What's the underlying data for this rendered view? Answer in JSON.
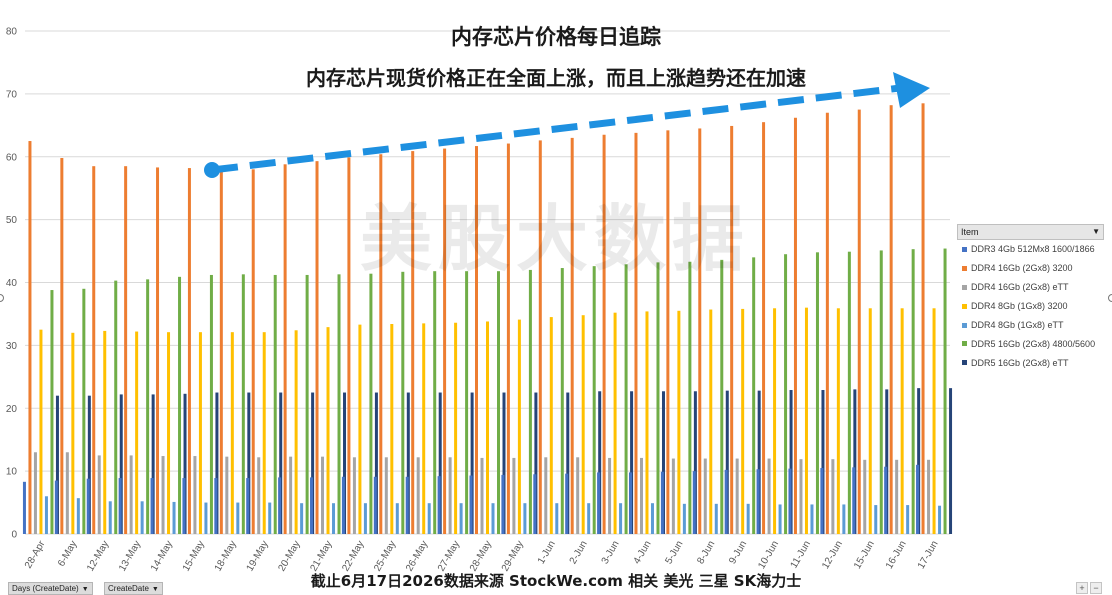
{
  "headline": "内存芯片价格每日追踪",
  "subheadline": "内存芯片现货价格正在全面上涨，而且上涨趋势还在加速",
  "watermark": "美股大数据",
  "footer": "截止6月17日2026数据来源 StockWe.com 相关 美光 三星 SK海力士",
  "legend_title": "Item",
  "filters": {
    "days": "Days (CreateDate)",
    "date": "CreateDate"
  },
  "zoom": {
    "plus": "+",
    "minus": "−"
  },
  "chart_data": {
    "type": "bar",
    "ylim": [
      0,
      80
    ],
    "yticks": [
      0,
      10,
      20,
      30,
      40,
      50,
      60,
      70,
      80
    ],
    "grid": true,
    "legend_position": "right",
    "categories": [
      "28-Apr",
      "6-May",
      "12-May",
      "13-May",
      "14-May",
      "15-May",
      "18-May",
      "19-May",
      "20-May",
      "21-May",
      "22-May",
      "25-May",
      "26-May",
      "27-May",
      "28-May",
      "29-May",
      "1-Jun",
      "2-Jun",
      "3-Jun",
      "4-Jun",
      "5-Jun",
      "8-Jun",
      "9-Jun",
      "10-Jun",
      "11-Jun",
      "12-Jun",
      "15-Jun",
      "16-Jun",
      "17-Jun"
    ],
    "series": [
      {
        "name": "DDR3 4Gb 512Mx8 1600/1866",
        "color": "#4472c4",
        "values": [
          8.3,
          8.5,
          8.8,
          8.9,
          8.9,
          8.9,
          8.9,
          8.9,
          9.0,
          9.0,
          9.1,
          9.1,
          9.1,
          9.2,
          9.3,
          9.4,
          9.5,
          9.6,
          9.8,
          9.8,
          9.9,
          10.0,
          10.2,
          10.3,
          10.4,
          10.5,
          10.6,
          10.7,
          11.0
        ]
      },
      {
        "name": "DDR4 16Gb (2Gx8) 3200",
        "color": "#ed7d31",
        "values": [
          62.5,
          59.8,
          58.5,
          58.5,
          58.3,
          58.2,
          57.9,
          58.0,
          58.8,
          59.3,
          59.9,
          60.4,
          60.9,
          61.3,
          61.7,
          62.1,
          62.6,
          63.0,
          63.5,
          63.8,
          64.2,
          64.5,
          64.9,
          65.5,
          66.2,
          67.0,
          67.5,
          68.2,
          68.5
        ]
      },
      {
        "name": "DDR4 16Gb (2Gx8) eTT",
        "color": "#a5a5a5",
        "values": [
          13.0,
          13.0,
          12.5,
          12.5,
          12.4,
          12.4,
          12.3,
          12.2,
          12.3,
          12.3,
          12.2,
          12.2,
          12.2,
          12.2,
          12.1,
          12.1,
          12.2,
          12.2,
          12.1,
          12.1,
          12.0,
          12.0,
          12.0,
          12.0,
          11.9,
          11.9,
          11.8,
          11.8,
          11.8
        ]
      },
      {
        "name": "DDR4 8Gb (1Gx8) 3200",
        "color": "#ffc000",
        "values": [
          32.5,
          32.0,
          32.3,
          32.2,
          32.1,
          32.1,
          32.1,
          32.1,
          32.4,
          32.9,
          33.3,
          33.4,
          33.5,
          33.6,
          33.8,
          34.1,
          34.5,
          34.8,
          35.2,
          35.4,
          35.5,
          35.7,
          35.8,
          35.9,
          36.0,
          35.9,
          35.9,
          35.9,
          35.9
        ]
      },
      {
        "name": "DDR4 8Gb (1Gx8) eTT",
        "color": "#5b9bd5",
        "values": [
          6.0,
          5.7,
          5.2,
          5.2,
          5.1,
          5.0,
          5.0,
          5.0,
          4.9,
          4.9,
          4.9,
          4.9,
          4.9,
          4.9,
          4.9,
          4.9,
          4.9,
          4.9,
          4.9,
          4.9,
          4.8,
          4.8,
          4.8,
          4.7,
          4.7,
          4.7,
          4.6,
          4.6,
          4.5
        ]
      },
      {
        "name": "DDR5 16Gb (2Gx8) 4800/5600",
        "color": "#70ad47",
        "values": [
          38.8,
          39.0,
          40.3,
          40.5,
          40.9,
          41.2,
          41.3,
          41.2,
          41.2,
          41.3,
          41.4,
          41.7,
          41.8,
          41.8,
          41.8,
          42.0,
          42.3,
          42.6,
          42.9,
          43.2,
          43.3,
          43.6,
          44.0,
          44.5,
          44.8,
          44.9,
          45.1,
          45.3,
          45.4
        ]
      },
      {
        "name": "DDR5 16Gb (2Gx8) eTT",
        "color": "#264478",
        "values": [
          22.0,
          22.0,
          22.2,
          22.2,
          22.3,
          22.5,
          22.5,
          22.5,
          22.5,
          22.5,
          22.5,
          22.5,
          22.5,
          22.5,
          22.5,
          22.5,
          22.5,
          22.7,
          22.7,
          22.7,
          22.7,
          22.8,
          22.8,
          22.9,
          22.9,
          23.0,
          23.0,
          23.2,
          23.2
        ]
      }
    ]
  }
}
